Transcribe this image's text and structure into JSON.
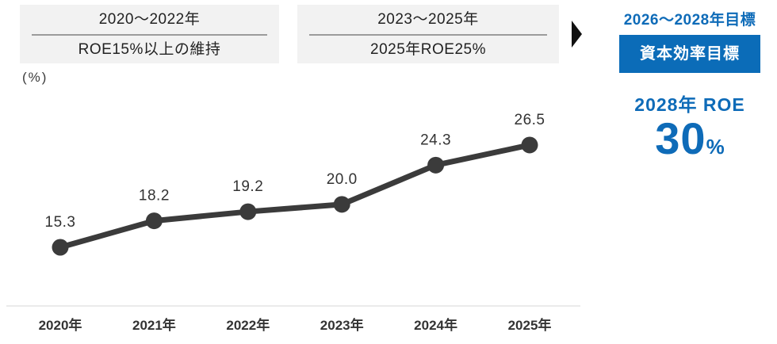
{
  "phases": [
    {
      "period": "2020〜2022年",
      "goal": "ROE15%以上の維持"
    },
    {
      "period": "2023〜2025年",
      "goal": "2025年ROE25%"
    }
  ],
  "target_panel": {
    "title": "2026〜2028年目標",
    "badge": "資本効率目標",
    "metric_label": "2028年 ROE",
    "metric_value": "30",
    "metric_unit": "%"
  },
  "colors": {
    "accent_blue": "#0b6cb8",
    "line": "#3b3b3b",
    "marker": "#3b3b3b",
    "data_label": "#333333",
    "year_label": "#333333",
    "axis_line": "#ebebeb",
    "phase_box_bg": "#f2f2f2",
    "phase_divider": "#9b9b9b",
    "arrow": "#111111"
  },
  "chart_data": {
    "type": "line",
    "series_name": "ROE",
    "title": "",
    "unit_label": "(%)",
    "categories": [
      "2020年",
      "2021年",
      "2022年",
      "2023年",
      "2024年",
      "2025年"
    ],
    "values": [
      15.3,
      18.2,
      19.2,
      20.0,
      24.3,
      26.5
    ],
    "data_labels": [
      "15.3",
      "18.2",
      "19.2",
      "20.0",
      "24.3",
      "26.5"
    ],
    "ylim": [
      13,
      29
    ],
    "grid": false,
    "legend": "none",
    "data_labels_shown": true
  }
}
